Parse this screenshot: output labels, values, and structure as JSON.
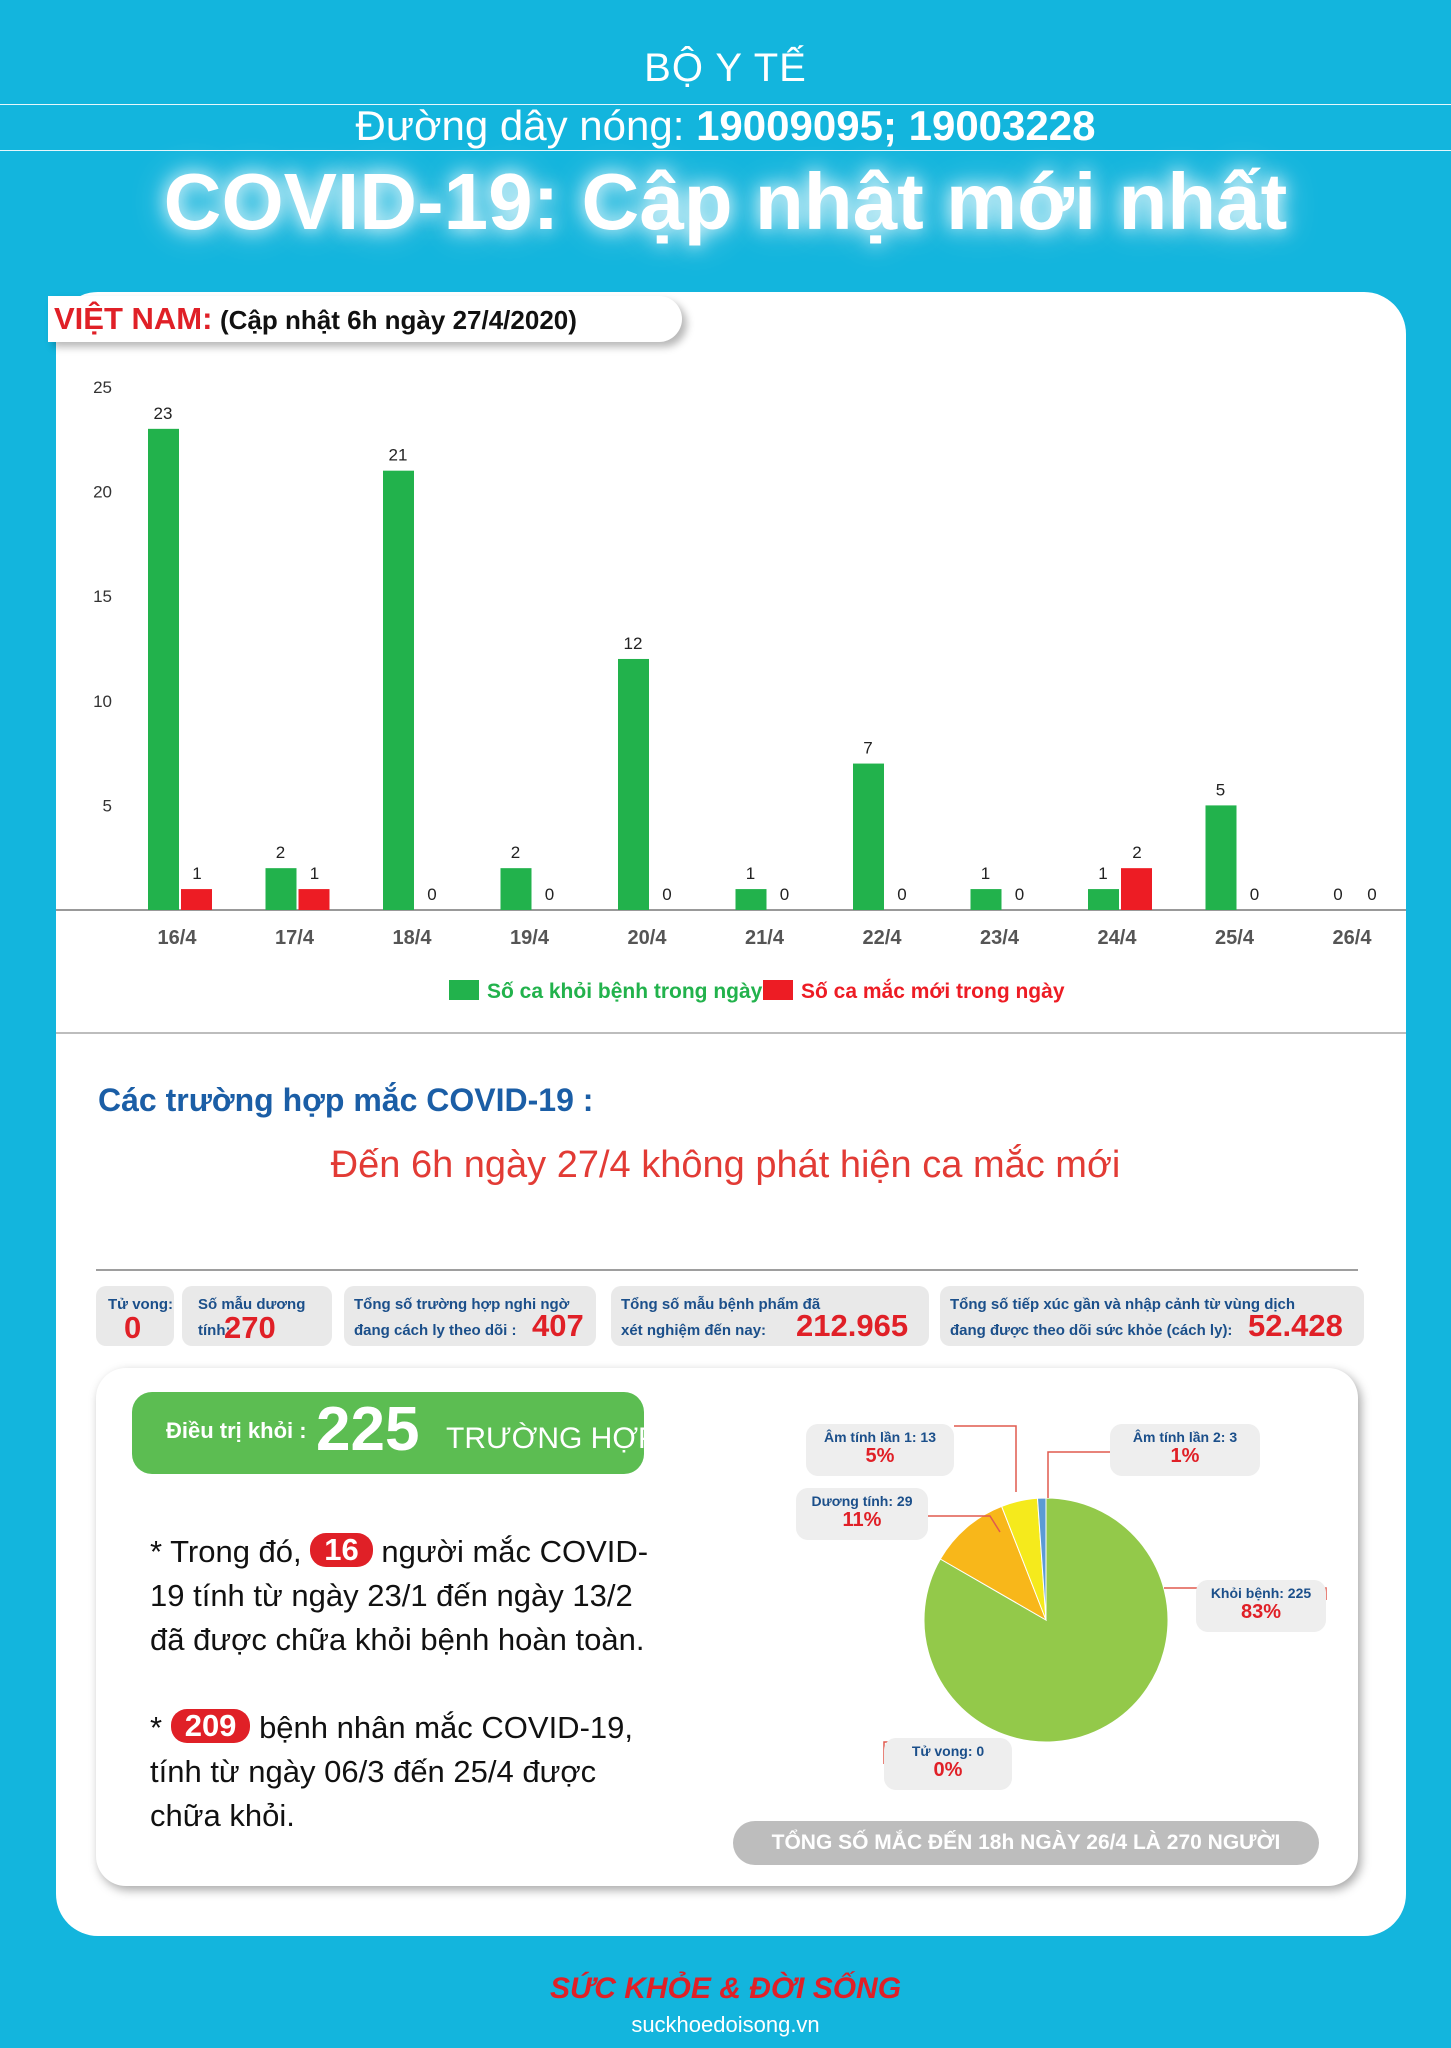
{
  "header": {
    "org": "BỘ Y TẾ",
    "hotline_label": "Đường dây nóng:",
    "hotline_numbers": "19009095; 19003228",
    "title": "COVID-19: Cập nhật mới nhất"
  },
  "country": {
    "name": "VIỆT NAM:",
    "updated": "(Cập nhật 6h ngày 27/4/2020)"
  },
  "chart_data": {
    "type": "bar",
    "categories": [
      "16/4",
      "17/4",
      "18/4",
      "19/4",
      "20/4",
      "21/4",
      "22/4",
      "23/4",
      "24/4",
      "25/4",
      "26/4"
    ],
    "series": [
      {
        "name": "Số ca khỏi bệnh trong ngày",
        "values": [
          23,
          2,
          21,
          2,
          12,
          1,
          7,
          1,
          1,
          5,
          0
        ]
      },
      {
        "name": "Số ca mắc mới trong ngày",
        "values": [
          1,
          1,
          0,
          0,
          0,
          0,
          0,
          0,
          2,
          0,
          0
        ]
      }
    ],
    "ylim": [
      0,
      25
    ],
    "yticks": [
      "5",
      "10",
      "15",
      "20",
      "25"
    ],
    "legend_position": "bottom",
    "colors": {
      "recovered": "#22b24c",
      "new_cases": "#ed1c24"
    }
  },
  "cases": {
    "section_title": "Các trường hợp mắc COVID-19 :",
    "no_new": "Đến 6h ngày 27/4 không phát hiện ca mắc mới"
  },
  "stats": [
    {
      "label": "Tử vong:",
      "value": "0"
    },
    {
      "label": "Số mẫu dương tính:",
      "value": "270"
    },
    {
      "label_line1": "Tổng số trường hợp nghi ngờ",
      "label_line2": "đang cách ly theo dõi :",
      "value": "407"
    },
    {
      "label_line1": "Tổng số mẫu bệnh phẩm đã",
      "label_line2": "xét nghiệm đến nay:",
      "value": "212.965"
    },
    {
      "label_line1": "Tổng số tiếp xúc gần và nhập cảnh từ vùng dịch",
      "label_line2": "đang được theo dõi sức khỏe (cách ly):",
      "value": "52.428"
    }
  ],
  "treatment": {
    "label": "Điều trị khỏi :",
    "count": "225",
    "unit": "TRƯỜNG HỢP",
    "p1_pre": "* Trong đó,",
    "p1_badge": "16",
    "p1_post": "người mắc COVID-19 tính từ ngày 23/1 đến ngày 13/2 đã được chữa khỏi bệnh hoàn toàn.",
    "p2_pre": "*",
    "p2_badge": "209",
    "p2_post": "bệnh nhân  mắc COVID-19, tính từ ngày 06/3 đến 25/4 được chữa khỏi."
  },
  "pie": {
    "type": "pie",
    "slices": [
      {
        "name": "Khỏi bệnh: 225",
        "value": 225,
        "pct": "83%",
        "color": "#93c94a"
      },
      {
        "name": "Dương tính: 29",
        "value": 29,
        "pct": "11%",
        "color": "#f8b71a"
      },
      {
        "name": "Âm tính lần 1: 13",
        "value": 13,
        "pct": "5%",
        "color": "#f5ea1c"
      },
      {
        "name": "Âm tính lần 2: 3",
        "value": 3,
        "pct": "1%",
        "color": "#5b9bd5"
      },
      {
        "name": "Tử vong: 0",
        "value": 0,
        "pct": "0%",
        "color": "#999999"
      }
    ]
  },
  "total": "TỔNG SỐ MẮC ĐẾN 18h NGÀY 26/4 LÀ 270 NGƯỜI",
  "brand": {
    "name": "SỨC KHỎE & ĐỜI SỐNG",
    "url": "suckhoedoisong.vn"
  }
}
